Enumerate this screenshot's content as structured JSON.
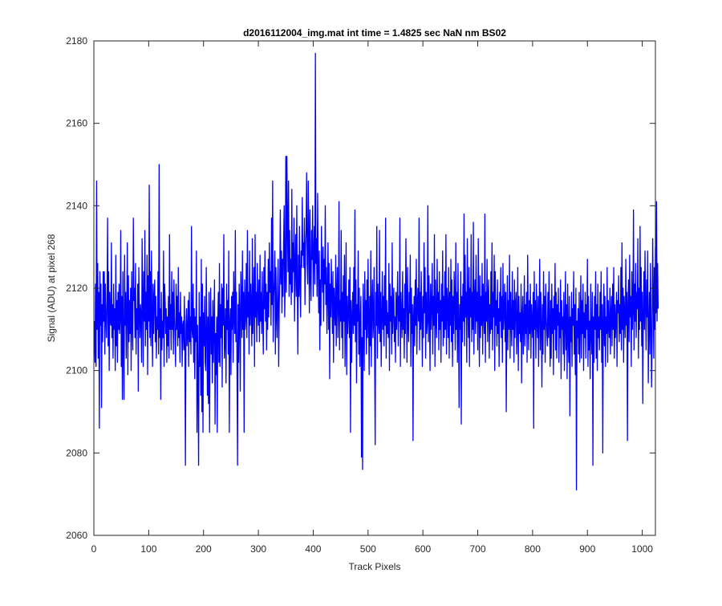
{
  "chart_data": {
    "type": "line",
    "title": "d2016112004_img.mat int time = 1.4825 sec  NaN nm BS02",
    "xlabel": "Track Pixels",
    "ylabel": "Signal (ADU) at pixel 268",
    "xlim": [
      0,
      1024
    ],
    "ylim": [
      2060,
      2180
    ],
    "xticks": [
      0,
      100,
      200,
      300,
      400,
      500,
      600,
      700,
      800,
      900,
      1000
    ],
    "yticks": [
      2060,
      2080,
      2100,
      2120,
      2140,
      2160,
      2180
    ],
    "grid": false,
    "legend": "none",
    "series": [
      {
        "color": "#0000ff",
        "x_start": 1,
        "x_step": 1,
        "values": [
          2112,
          2102,
          2121,
          2101,
          2146,
          2110,
          2126,
          2103,
          2119,
          2086,
          2124,
          2111,
          2121,
          2091,
          2116,
          2107,
          2124,
          2112,
          2124,
          2104,
          2121,
          2113,
          2108,
          2116,
          2137,
          2106,
          2124,
          2100,
          2119,
          2112,
          2111,
          2131,
          2108,
          2116,
          2103,
          2121,
          2110,
          2115,
          2100,
          2128,
          2106,
          2117,
          2102,
          2119,
          2110,
          2121,
          2109,
          2113,
          2134,
          2101,
          2118,
          2093,
          2124,
          2106,
          2093,
          2128,
          2111,
          2119,
          2103,
          2115,
          2131,
          2099,
          2123,
          2107,
          2117,
          2109,
          2120,
          2100,
          2124,
          2112,
          2105,
          2137,
          2117,
          2120,
          2108,
          2126,
          2104,
          2115,
          2110,
          2121,
          2095,
          2125,
          2114,
          2108,
          2116,
          2113,
          2102,
          2132,
          2118,
          2101,
          2124,
          2112,
          2134,
          2106,
          2119,
          2110,
          2128,
          2099,
          2123,
          2112,
          2145,
          2108,
          2124,
          2106,
          2129,
          2113,
          2101,
          2121,
          2109,
          2118,
          2122,
          2107,
          2118,
          2103,
          2113,
          2110,
          2124,
          2104,
          2150,
          2108,
          2115,
          2093,
          2119,
          2105,
          2112,
          2108,
          2129,
          2101,
          2121,
          2117,
          2109,
          2115,
          2102,
          2113,
          2106,
          2118,
          2103,
          2133,
          2110,
          2116,
          2105,
          2124,
          2110,
          2119,
          2104,
          2122,
          2113,
          2108,
          2101,
          2121,
          2110,
          2118,
          2106,
          2125,
          2108,
          2114,
          2102,
          2119,
          2109,
          2113,
          2101,
          2111,
          2112,
          2105,
          2118,
          2105,
          2077,
          2111,
          2115,
          2106,
          2109,
          2117,
          2101,
          2119,
          2107,
          2113,
          2104,
          2135,
          2110,
          2108,
          2121,
          2102,
          2115,
          2098,
          2113,
          2107,
          2129,
          2085,
          2111,
          2097,
          2077,
          2119,
          2101,
          2113,
          2094,
          2127,
          2090,
          2121,
          2085,
          2114,
          2106,
          2118,
          2102,
          2100,
          2125,
          2111,
          2094,
          2113,
          2092,
          2119,
          2085,
          2109,
          2120,
          2104,
          2113,
          2097,
          2117,
          2102,
          2111,
          2122,
          2087,
          2109,
          2099,
          2113,
          2085,
          2112,
          2119,
          2102,
          2126,
          2101,
          2116,
          2108,
          2121,
          2096,
          2120,
          2111,
          2133,
          2103,
          2107,
          2115,
          2097,
          2121,
          2110,
          2117,
          2104,
          2129,
          2085,
          2111,
          2115,
          2099,
          2118,
          2110,
          2119,
          2102,
          2124,
          2113,
          2109,
          2134,
          2107,
          2119,
          2101,
          2077,
          2116,
          2102,
          2121,
          2113,
          2095,
          2124,
          2117,
          2108,
          2129,
          2110,
          2119,
          2085,
          2122,
          2110,
          2113,
          2126,
          2108,
          2134,
          2113,
          2119,
          2104,
          2129,
          2111,
          2121,
          2115,
          2106,
          2132,
          2109,
          2117,
          2125,
          2101,
          2133,
          2113,
          2119,
          2107,
          2126,
          2116,
          2111,
          2122,
          2107,
          2128,
          2112,
          2119,
          2109,
          2124,
          2113,
          2104,
          2125,
          2115,
          2129,
          2112,
          2121,
          2105,
          2119,
          2110,
          2127,
          2113,
          2131,
          2119,
          2124,
          2111,
          2137,
          2116,
          2146,
          2107,
          2118,
          2122,
          2129,
          2104,
          2125,
          2114,
          2108,
          2119,
          2127,
          2101,
          2115,
          2123,
          2139,
          2121,
          2129,
          2114,
          2127,
          2118,
          2131,
          2140,
          2113,
          2122,
          2152,
          2119,
          2152,
          2136,
          2124,
          2146,
          2118,
          2134,
          2121,
          2127,
          2116,
          2144,
          2119,
          2131,
          2124,
          2137,
          2112,
          2126,
          2133,
          2118,
          2140,
          2120,
          2104,
          2128,
          2118,
          2135,
          2121,
          2113,
          2129,
          2125,
          2142,
          2128,
          2131,
          2125,
          2137,
          2116,
          2130,
          2134,
          2148,
          2126,
          2121,
          2146,
          2132,
          2114,
          2139,
          2123,
          2117,
          2134,
          2127,
          2140,
          2118,
          2128,
          2135,
          2121,
          2177,
          2126,
          2132,
          2118,
          2143,
          2125,
          2114,
          2129,
          2105,
          2122,
          2111,
          2135,
          2124,
          2119,
          2130,
          2112,
          2127,
          2121,
          2140,
          2116,
          2125,
          2109,
          2119,
          2131,
          2110,
          2126,
          2098,
          2121,
          2113,
          2127,
          2118,
          2109,
          2124,
          2102,
          2120,
          2115,
          2111,
          2128,
          2106,
          2119,
          2125,
          2108,
          2115,
          2141,
          2105,
          2117,
          2112,
          2134,
          2108,
          2119,
          2103,
          2123,
          2112,
          2128,
          2101,
          2116,
          2131,
          2099,
          2118,
          2109,
          2114,
          2122,
          2108,
          2125,
          2085,
          2117,
          2102,
          2113,
          2119,
          2109,
          2125,
          2111,
          2139,
          2107,
          2122,
          2097,
          2116,
          2112,
          2129,
          2104,
          2120,
          2101,
          2112,
          2118,
          2079,
          2108,
          2076,
          2121,
          2113,
          2100,
          2124,
          2110,
          2117,
          2104,
          2122,
          2108,
          2127,
          2113,
          2099,
          2118,
          2106,
          2129,
          2101,
          2116,
          2122,
          2108,
          2112,
          2125,
          2104,
          2082,
          2119,
          2111,
          2135,
          2103,
          2121,
          2112,
          2109,
          2134,
          2107,
          2119,
          2101,
          2113,
          2124,
          2110,
          2118,
          2106,
          2123,
          2111,
          2137,
          2103,
          2117,
          2109,
          2114,
          2108,
          2126,
          2100,
          2121,
          2112,
          2118,
          2104,
          2131,
          2109,
          2115,
          2120,
          2107,
          2113,
          2102,
          2119,
          2110,
          2116,
          2124,
          2106,
          2118,
          2112,
          2137,
          2101,
          2119,
          2113,
          2108,
          2124,
          2110,
          2115,
          2103,
          2121,
          2109,
          2132,
          2118,
          2102,
          2125,
          2111,
          2107,
          2119,
          2114,
          2128,
          2101,
          2120,
          2109,
          2116,
          2083,
          2113,
          2118,
          2106,
          2122,
          2111,
          2127,
          2104,
          2116,
          2120,
          2112,
          2137,
          2105,
          2119,
          2110,
          2124,
          2113,
          2101,
          2118,
          2108,
          2131,
          2114,
          2125,
          2103,
          2119,
          2109,
          2112,
          2140,
          2107,
          2123,
          2115,
          2100,
          2121,
          2110,
          2116,
          2126,
          2104,
          2118,
          2111,
          2133,
          2101,
          2122,
          2113,
          2108,
          2127,
          2114,
          2119,
          2105,
          2124,
          2110,
          2117,
          2102,
          2121,
          2112,
          2129,
          2106,
          2118,
          2108,
          2124,
          2110,
          2133,
          2104,
          2120,
          2116,
          2108,
          2125,
          2103,
          2119,
          2111,
          2127,
          2107,
          2122,
          2101,
          2118,
          2109,
          2124,
          2117,
          2105,
          2131,
          2110,
          2119,
          2102,
          2126,
          2112,
          2091,
          2116,
          2110,
          2124,
          2087,
          2118,
          2107,
          2121,
          2112,
          2138,
          2106,
          2128,
          2113,
          2119,
          2102,
          2132,
          2116,
          2108,
          2125,
          2101,
          2120,
          2113,
          2133,
          2107,
          2119,
          2110,
          2136,
          2104,
          2117,
          2122,
          2109,
          2128,
          2112,
          2119,
          2105,
          2132,
          2115,
          2101,
          2123,
          2108,
          2118,
          2111,
          2126,
          2104,
          2121,
          2114,
          2109,
          2138,
          2102,
          2119,
          2112,
          2127,
          2107,
          2118,
          2122,
          2103,
          2116,
          2109,
          2124,
          2110,
          2131,
          2105,
          2119,
          2113,
          2128,
          2100,
          2124,
          2111,
          2117,
          2106,
          2122,
          2109,
          2115,
          2101,
          2119,
          2112,
          2125,
          2108,
          2118,
          2102,
          2126,
          2110,
          2114,
          2121,
          2107,
          2119,
          2090,
          2112,
          2123,
          2105,
          2117,
          2110,
          2128,
          2103,
          2119,
          2113,
          2106,
          2124,
          2110,
          2117,
          2102,
          2122,
          2108,
          2116,
          2119,
          2104,
          2111,
          2125,
          2100,
          2118,
          2109,
          2114,
          2107,
          2121,
          2097,
          2113,
          2118,
          2104,
          2111,
          2123,
          2106,
          2116,
          2109,
          2119,
          2102,
          2128,
          2113,
          2105,
          2117,
          2109,
          2121,
          2103,
          2116,
          2112,
          2108,
          2119,
          2086,
          2124,
          2110,
          2117,
          2103,
          2121,
          2112,
          2108,
          2118,
          2101,
          2114,
          2127,
          2105,
          2119,
          2111,
          2096,
          2116,
          2104,
          2124,
          2110,
          2118,
          2102,
          2121,
          2113,
          2109,
          2106,
          2119,
          2108,
          2124,
          2112,
          2101,
          2117,
          2103,
          2121,
          2109,
          2115,
          2099,
          2118,
          2110,
          2126,
          2105,
          2119,
          2103,
          2116,
          2111,
          2120,
          2102,
          2114,
          2108,
          2122,
          2098,
          2117,
          2110,
          2113,
          2104,
          2119,
          2100,
          2111,
          2124,
          2105,
          2116,
          2098,
          2121,
          2109,
          2102,
          2118,
          2089,
          2113,
          2107,
          2119,
          2101,
          2115,
          2111,
          2124,
          2104,
          2116,
          2099,
          2120,
          2071,
          2112,
          2108,
          2115,
          2104,
          2119,
          2102,
          2111,
          2123,
          2103,
          2117,
          2109,
          2121,
          2100,
          2114,
          2108,
          2119,
          2103,
          2116,
          2110,
          2127,
          2101,
          2118,
          2105,
          2112,
          2098,
          2121,
          2109,
          2104,
          2119,
          2077,
          2113,
          2102,
          2118,
          2110,
          2124,
          2103,
          2116,
          2100,
          2121,
          2108,
          2113,
          2105,
          2119,
          2110,
          2124,
          2102,
          2116,
          2080,
          2112,
          2121,
          2106,
          2118,
          2101,
          2113,
          2109,
          2125,
          2102,
          2117,
          2111,
          2108,
          2120,
          2104,
          2114,
          2118,
          2106,
          2121,
          2110,
          2125,
          2103,
          2116,
          2108,
          2112,
          2119,
          2101,
          2117,
          2114,
          2123,
          2107,
          2116,
          2109,
          2125,
          2105,
          2131,
          2110,
          2120,
          2102,
          2118,
          2113,
          2108,
          2127,
          2111,
          2119,
          2083,
          2116,
          2122,
          2107,
          2128,
          2113,
          2118,
          2101,
          2124,
          2110,
          2115,
          2139,
          2105,
          2121,
          2112,
          2126,
          2108,
          2119,
          2115,
          2132,
          2103,
          2120,
          2110,
          2135,
          2112,
          2125,
          2106,
          2119,
          2092,
          2114,
          2124,
          2110,
          2129,
          2116,
          2105,
          2122,
          2113,
          2129,
          2097,
          2111,
          2119,
          2104,
          2126,
          2113,
          2096,
          2108,
          2132,
          2119,
          2103,
          2125,
          2110,
          2130,
          2114,
          2141,
          2112,
          2126,
          2115
        ]
      }
    ]
  }
}
